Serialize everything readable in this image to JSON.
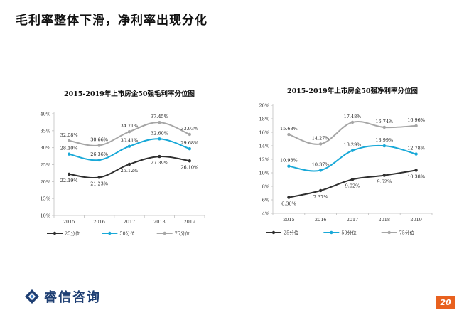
{
  "slide": {
    "title": "毛利率整体下滑，净利率出现分化",
    "page_number": "20",
    "logo_text": "睿信咨询",
    "brand_color": "#1f3f73",
    "accent_color": "#e8611f"
  },
  "chart_data": [
    {
      "type": "line",
      "title": "2015-2019年上市房企50强毛利率分位图",
      "categories": [
        "2015",
        "2016",
        "2017",
        "2018",
        "2019"
      ],
      "ylim": [
        10,
        40
      ],
      "yticks": [
        10,
        15,
        20,
        25,
        30,
        35,
        40
      ],
      "ytick_labels": [
        "10%",
        "15%",
        "20%",
        "25%",
        "30%",
        "35%",
        "40%"
      ],
      "series": [
        {
          "name": "25分位",
          "color": "#2f2f2f",
          "values": [
            22.19,
            21.23,
            25.12,
            27.39,
            26.1
          ],
          "labels": [
            "22.19%",
            "21.23%",
            "25.12%",
            "27.39%",
            "26.10%"
          ]
        },
        {
          "name": "50分位",
          "color": "#19a9d8",
          "values": [
            28.1,
            26.36,
            30.41,
            32.6,
            29.68
          ],
          "labels": [
            "28.10%",
            "26.36%",
            "30.41%",
            "32.60%",
            "29.68%"
          ]
        },
        {
          "name": "75分位",
          "color": "#a6a6a6",
          "values": [
            32.08,
            30.66,
            34.71,
            37.45,
            33.93
          ],
          "labels": [
            "32.08%",
            "30.66%",
            "34.71%",
            "37.45%",
            "33.93%"
          ]
        }
      ],
      "legend": "bottom"
    },
    {
      "type": "line",
      "title": "2015-2019年上市房企50强净利率分位图",
      "categories": [
        "2015",
        "2016",
        "2017",
        "2018",
        "2019"
      ],
      "ylim": [
        4,
        20
      ],
      "yticks": [
        4,
        6,
        8,
        10,
        12,
        14,
        16,
        18,
        20
      ],
      "ytick_labels": [
        "4%",
        "6%",
        "8%",
        "10%",
        "12%",
        "14%",
        "16%",
        "18%",
        "20%"
      ],
      "series": [
        {
          "name": "25分位",
          "color": "#2f2f2f",
          "values": [
            6.36,
            7.37,
            9.02,
            9.62,
            10.38
          ],
          "labels": [
            "6.36%",
            "7.37%",
            "9.02%",
            "9.62%",
            "10.38%"
          ]
        },
        {
          "name": "50分位",
          "color": "#19a9d8",
          "values": [
            10.98,
            10.37,
            13.29,
            13.99,
            12.78
          ],
          "labels": [
            "10.98%",
            "10.37%",
            "13.29%",
            "13.99%",
            "12.78%"
          ]
        },
        {
          "name": "75分位",
          "color": "#a6a6a6",
          "values": [
            15.68,
            14.27,
            17.48,
            16.74,
            16.96
          ],
          "labels": [
            "15.68%",
            "14.27%",
            "17.48%",
            "16.74%",
            "16.96%"
          ]
        }
      ],
      "legend": "bottom"
    }
  ]
}
